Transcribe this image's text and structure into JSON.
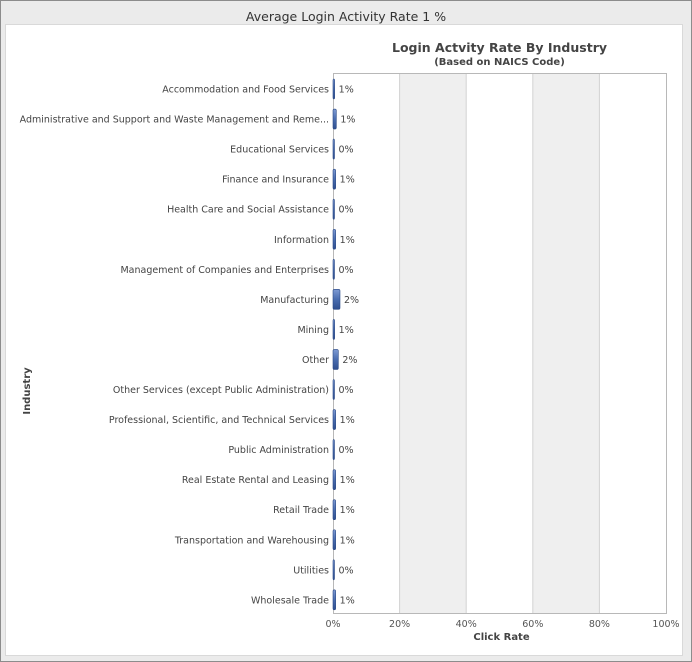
{
  "panel": {
    "title": "Average Login Activity Rate 1 %"
  },
  "chart_data": {
    "type": "bar",
    "orientation": "horizontal",
    "title": "Login Actvity Rate By Industry",
    "subtitle": "(Based on NAICS Code)",
    "xlabel": "Click Rate",
    "ylabel": "Industry",
    "xlim": [
      0,
      100
    ],
    "x_ticks": [
      "0%",
      "20%",
      "40%",
      "60%",
      "80%",
      "100%"
    ],
    "grid": "alternating vertical bands",
    "categories": [
      "Accommodation and Food Services",
      "Administrative and Support and Waste Management and Reme...",
      "Educational Services",
      "Finance and Insurance",
      "Health Care and Social Assistance",
      "Information",
      "Management of Companies and Enterprises",
      "Manufacturing",
      "Mining",
      "Other",
      "Other Services (except Public Administration)",
      "Professional, Scientific, and Technical Services",
      "Public Administration",
      "Real Estate Rental and Leasing",
      "Retail Trade",
      "Transportation and Warehousing",
      "Utilities",
      "Wholesale Trade"
    ],
    "values": [
      0.5,
      1.0,
      0.2,
      0.8,
      0.2,
      0.8,
      0.2,
      2.1,
      0.5,
      1.6,
      0.2,
      0.8,
      0.2,
      0.8,
      0.8,
      0.8,
      0.2,
      0.8
    ],
    "data_labels": [
      "1%",
      "1%",
      "0%",
      "1%",
      "0%",
      "1%",
      "0%",
      "2%",
      "1%",
      "2%",
      "0%",
      "1%",
      "0%",
      "1%",
      "1%",
      "1%",
      "0%",
      "1%"
    ],
    "bar_color": "#4a6db0",
    "band_color": "#efefef"
  }
}
